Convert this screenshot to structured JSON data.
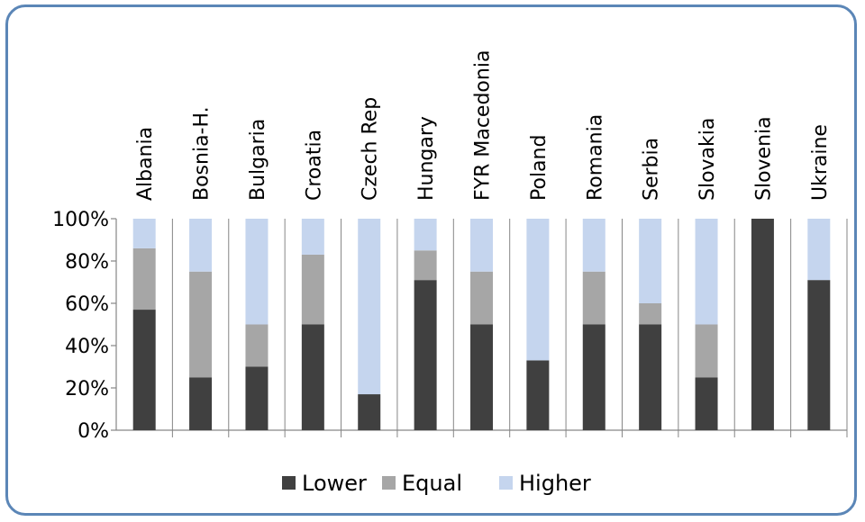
{
  "chart_data": {
    "type": "bar",
    "stacked": true,
    "percent": true,
    "categories": [
      "Albania",
      "Bosnia-H.",
      "Bulgaria",
      "Croatia",
      "Czech Rep",
      "Hungary",
      "FYR Macedonia",
      "Poland",
      "Romania",
      "Serbia",
      "Slovakia",
      "Slovenia",
      "Ukraine"
    ],
    "series": [
      {
        "name": "Lower",
        "color": "#404040",
        "values": [
          57,
          25,
          30,
          50,
          17,
          71,
          50,
          33,
          50,
          50,
          25,
          100,
          71
        ]
      },
      {
        "name": "Equal",
        "color": "#a6a6a6",
        "values": [
          29,
          50,
          20,
          33,
          0,
          14,
          25,
          0,
          25,
          10,
          25,
          0,
          0
        ]
      },
      {
        "name": "Higher",
        "color": "#c5d5ee",
        "values": [
          14,
          25,
          50,
          17,
          83,
          15,
          25,
          67,
          25,
          40,
          50,
          0,
          29
        ]
      }
    ],
    "yticks": [
      "0%",
      "20%",
      "40%",
      "60%",
      "80%",
      "100%"
    ],
    "ylim": [
      0,
      100
    ],
    "legend_position": "bottom",
    "grid": false
  }
}
